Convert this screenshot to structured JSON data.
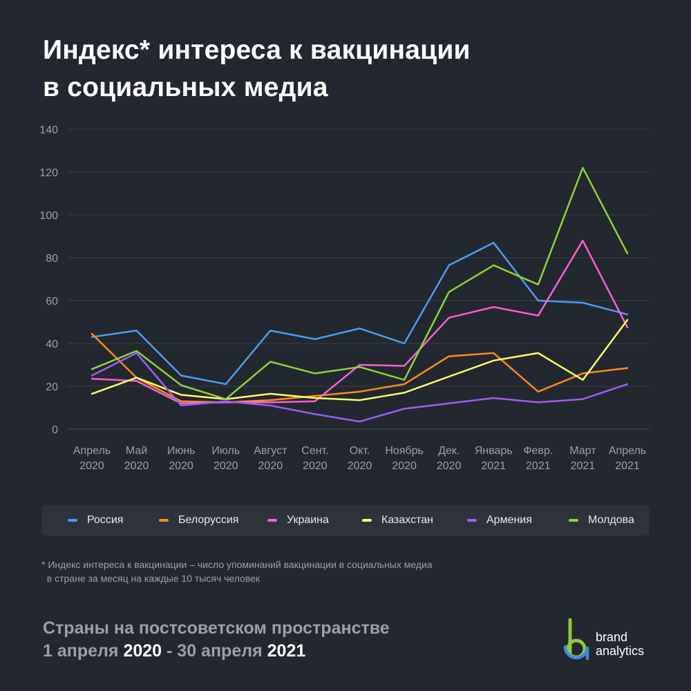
{
  "title_lines": [
    "Индекс* интереса к вакцинации",
    "в социальных медиа"
  ],
  "footnote_lines": [
    "* Индекс интереса к вакцинации – число упоминаний вакцинации в социальных медиа",
    "  в стране за месяц на каждые 10 тысяч человек"
  ],
  "subtitle": {
    "line1": "Страны на постсоветском пространстве",
    "line2_a": "1 апреля ",
    "line2_b": "2020",
    "line2_c": " - 30 апреля ",
    "line2_d": "2021"
  },
  "brand": {
    "line1": "brand",
    "line2": "analytics"
  },
  "colors": {
    "background": "#23272f",
    "grid": "#3b404a",
    "legend_bg": "#2d323b",
    "brand_green": "#8fc73e",
    "brand_blue": "#4a86d8"
  },
  "chart_data": {
    "type": "line",
    "title": "Индекс* интереса к вакцинации в социальных медиа",
    "xlabel": "",
    "ylabel": "",
    "ylim": [
      0,
      140
    ],
    "yticks": [
      0,
      20,
      40,
      60,
      80,
      100,
      120,
      140
    ],
    "grid": true,
    "legend_position": "bottom",
    "categories": [
      [
        "Апрель",
        "2020"
      ],
      [
        "Май",
        "2020"
      ],
      [
        "Июнь",
        "2020"
      ],
      [
        "Июль",
        "2020"
      ],
      [
        "Август",
        "2020"
      ],
      [
        "Сент.",
        "2020"
      ],
      [
        "Окт.",
        "2020"
      ],
      [
        "Ноябрь",
        "2020"
      ],
      [
        "Дек.",
        "2020"
      ],
      [
        "Январь",
        "2021"
      ],
      [
        "Февр.",
        "2021"
      ],
      [
        "Март",
        "2021"
      ],
      [
        "Апрель",
        "2021"
      ]
    ],
    "series": [
      {
        "name": "Россия",
        "color": "#4f9cf2",
        "values": [
          43,
          46,
          25,
          21,
          46,
          42,
          47,
          40,
          76.5,
          87,
          60,
          59,
          53.5
        ]
      },
      {
        "name": "Белоруссия",
        "color": "#ff8c1a",
        "values": [
          44.5,
          24,
          13,
          12.5,
          13.5,
          15.5,
          17.5,
          21,
          34,
          35.5,
          17.5,
          26,
          28.5
        ]
      },
      {
        "name": "Украина",
        "color": "#ff5fd6",
        "values": [
          23.5,
          22.5,
          12,
          12.5,
          12.5,
          13,
          30,
          29.5,
          52,
          57,
          53,
          88,
          47.5
        ]
      },
      {
        "name": "Казахстан",
        "color": "#ffff66",
        "values": [
          16.5,
          24,
          16,
          14,
          16.5,
          14.5,
          13.5,
          17,
          24.5,
          32,
          35.5,
          23,
          51
        ]
      },
      {
        "name": "Армения",
        "color": "#9b5ff6",
        "values": [
          25,
          35.5,
          11,
          13,
          11,
          7,
          3.5,
          9.5,
          12,
          14.5,
          12.5,
          14,
          21
        ]
      },
      {
        "name": "Молдова",
        "color": "#8fd43a",
        "values": [
          28,
          36.5,
          20.5,
          14,
          31.5,
          26,
          29,
          23,
          64,
          76.5,
          67.5,
          122,
          82
        ]
      }
    ]
  }
}
